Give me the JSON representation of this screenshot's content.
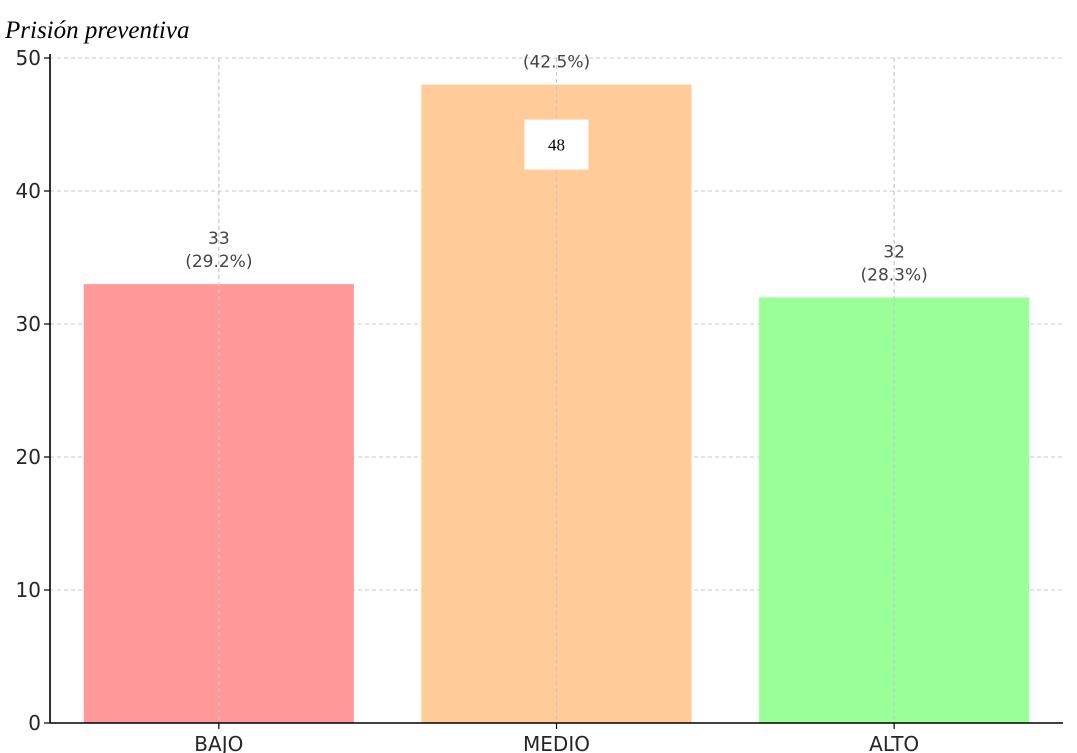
{
  "chart_data": {
    "type": "bar",
    "title": "Prisión preventiva",
    "categories": [
      "BAJO",
      "MEDIO",
      "ALTO"
    ],
    "values": [
      33,
      48,
      32
    ],
    "percent_labels": [
      "(29.2%)",
      "(42.5%)",
      "(28.3%)"
    ],
    "value_labels": [
      "33",
      "48",
      "32"
    ],
    "colors": [
      "#ff9999",
      "#ffcc99",
      "#99ff99"
    ],
    "xlabel": "",
    "ylabel": "",
    "ylim": [
      0,
      50
    ],
    "yticks": [
      0,
      10,
      20,
      30,
      40,
      50
    ],
    "grid": true,
    "legend": "none"
  }
}
